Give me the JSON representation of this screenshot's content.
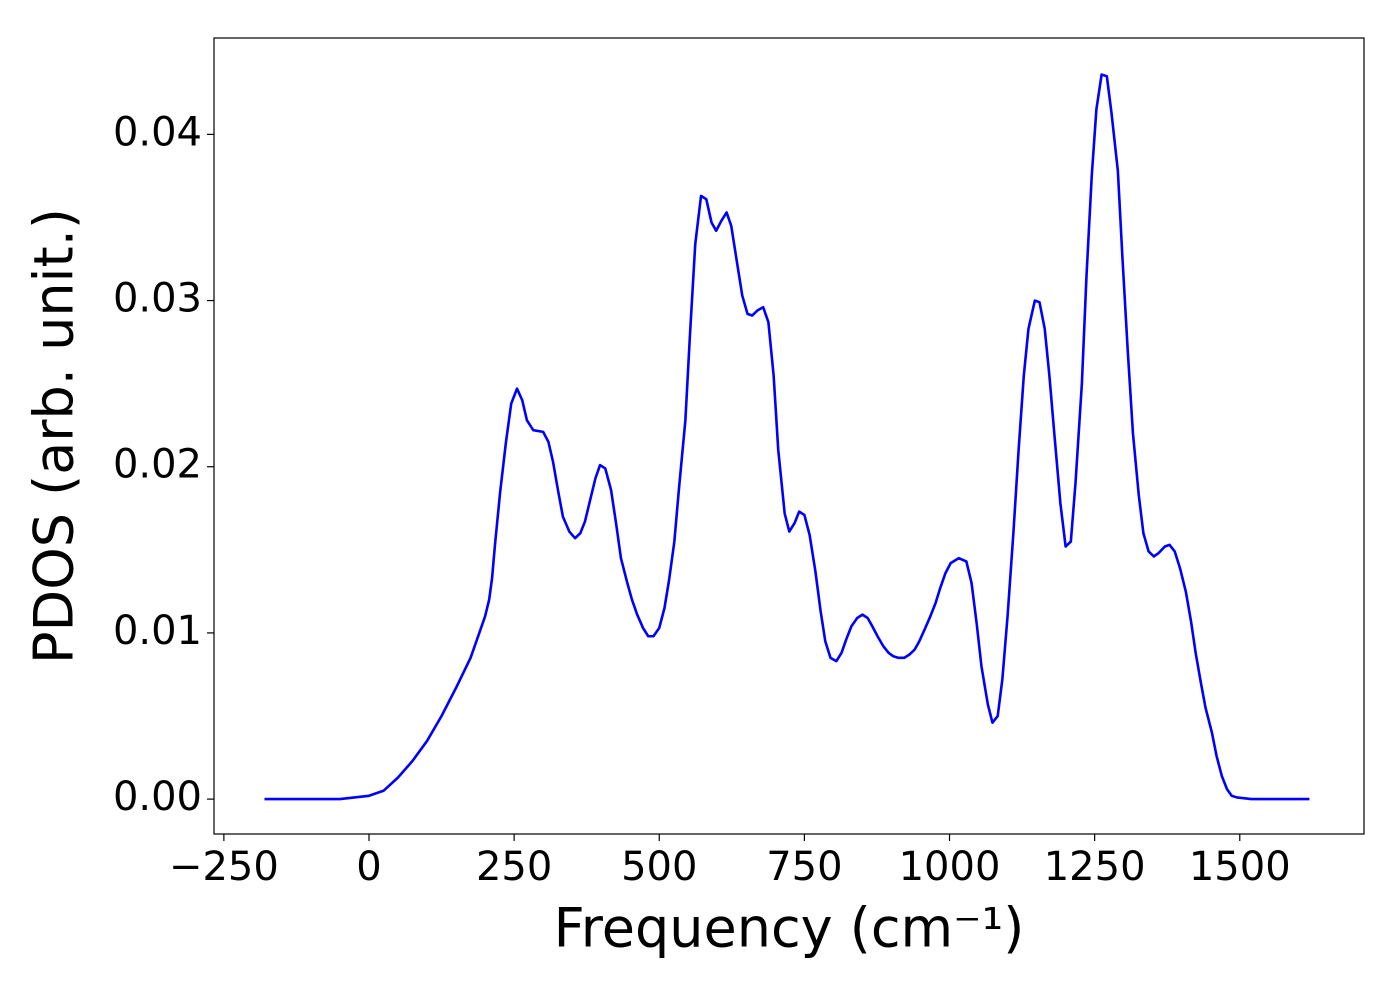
{
  "chart_data": {
    "type": "line",
    "xlabel": "Frequency (cm⁻¹)",
    "ylabel": "PDOS (arb. unit.)",
    "color": "#0000ff",
    "x": [
      -180,
      -100,
      -50,
      0,
      25,
      50,
      75,
      100,
      125,
      150,
      175,
      190,
      200,
      207,
      212,
      217,
      226,
      236,
      245,
      255,
      264,
      272,
      283,
      300,
      309,
      317,
      326,
      334,
      345,
      355,
      364,
      372,
      381,
      390,
      398,
      407,
      417,
      426,
      434,
      445,
      453,
      462,
      472,
      481,
      490,
      500,
      509,
      517,
      526,
      534,
      545,
      553,
      562,
      572,
      581,
      590,
      598,
      607,
      616,
      624,
      633,
      643,
      652,
      660,
      669,
      679,
      688,
      697,
      705,
      716,
      724,
      733,
      741,
      750,
      759,
      769,
      778,
      786,
      795,
      805,
      814,
      822,
      831,
      841,
      850,
      859,
      867,
      876,
      886,
      895,
      903,
      912,
      922,
      931,
      940,
      948,
      957,
      967,
      976,
      984,
      993,
      1002,
      1016,
      1029,
      1038,
      1047,
      1055,
      1066,
      1074,
      1083,
      1091,
      1100,
      1110,
      1119,
      1128,
      1136,
      1147,
      1155,
      1164,
      1172,
      1181,
      1191,
      1200,
      1209,
      1217,
      1228,
      1236,
      1245,
      1253,
      1262,
      1271,
      1279,
      1290,
      1298,
      1307,
      1316,
      1326,
      1334,
      1343,
      1352,
      1360,
      1371,
      1379,
      1388,
      1397,
      1407,
      1416,
      1424,
      1433,
      1441,
      1452,
      1460,
      1469,
      1478,
      1486,
      1495,
      1520,
      1620
    ],
    "values": [
      0,
      0,
      0,
      0.0002,
      0.0005,
      0.0013,
      0.0023,
      0.0035,
      0.005,
      0.0067,
      0.0085,
      0.01,
      0.011,
      0.012,
      0.0133,
      0.0153,
      0.0185,
      0.0215,
      0.0238,
      0.0247,
      0.024,
      0.0228,
      0.0222,
      0.0221,
      0.0215,
      0.0203,
      0.0185,
      0.017,
      0.0161,
      0.0157,
      0.016,
      0.0167,
      0.018,
      0.0193,
      0.0201,
      0.0199,
      0.0186,
      0.0165,
      0.0145,
      0.013,
      0.012,
      0.0111,
      0.0103,
      0.0098,
      0.0098,
      0.0103,
      0.0115,
      0.0132,
      0.0155,
      0.0187,
      0.0228,
      0.028,
      0.0334,
      0.0363,
      0.0361,
      0.0347,
      0.0342,
      0.0348,
      0.0353,
      0.0345,
      0.0325,
      0.0303,
      0.0292,
      0.0291,
      0.0294,
      0.0296,
      0.0287,
      0.0255,
      0.021,
      0.0172,
      0.0161,
      0.0166,
      0.0173,
      0.0171,
      0.0159,
      0.0137,
      0.0113,
      0.0095,
      0.0085,
      0.0083,
      0.0088,
      0.0096,
      0.0104,
      0.0109,
      0.0111,
      0.0109,
      0.0104,
      0.0098,
      0.0092,
      0.0088,
      0.0086,
      0.0085,
      0.0085,
      0.0087,
      0.009,
      0.0095,
      0.0102,
      0.011,
      0.0118,
      0.0127,
      0.0136,
      0.0142,
      0.0145,
      0.0143,
      0.013,
      0.0105,
      0.008,
      0.0057,
      0.0046,
      0.005,
      0.0072,
      0.011,
      0.016,
      0.021,
      0.0255,
      0.0283,
      0.03,
      0.0299,
      0.0283,
      0.0255,
      0.0218,
      0.0178,
      0.0152,
      0.0155,
      0.019,
      0.025,
      0.0315,
      0.0375,
      0.0415,
      0.0436,
      0.0435,
      0.0413,
      0.0378,
      0.0325,
      0.027,
      0.022,
      0.0183,
      0.016,
      0.0149,
      0.0146,
      0.0148,
      0.0152,
      0.0153,
      0.0149,
      0.0139,
      0.0125,
      0.0107,
      0.0088,
      0.007,
      0.0055,
      0.004,
      0.0026,
      0.0014,
      0.0006,
      0.0002,
      0.0001,
      0,
      0
    ],
    "xlim": [
      -267,
      1714
    ],
    "ylim": [
      -0.0021,
      0.0458
    ],
    "xticks": [
      {
        "value": -250,
        "label": "−250"
      },
      0,
      250,
      500,
      750,
      1000,
      1250,
      1500
    ],
    "yticks": [
      {
        "value": 0,
        "label": "0.00"
      },
      {
        "value": 0.01,
        "label": "0.01"
      },
      {
        "value": 0.02,
        "label": "0.02"
      },
      {
        "value": 0.03,
        "label": "0.03"
      },
      {
        "value": 0.04,
        "label": "0.04"
      }
    ]
  }
}
